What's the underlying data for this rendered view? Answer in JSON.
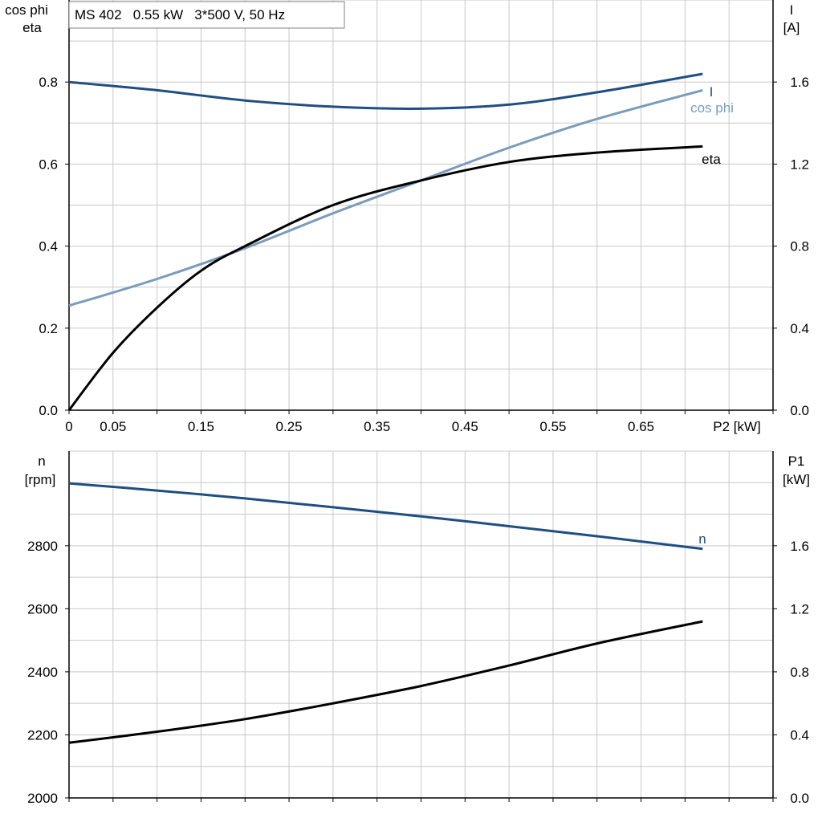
{
  "header": {
    "title": "MS 402   0.55 kW   3*500 V, 50 Hz"
  },
  "colors": {
    "I": "#1f4e82",
    "cosphi": "#7a9cbc",
    "eta": "#000000",
    "n": "#1f4e82",
    "P1": "#000000",
    "grid": "#c8c8c8",
    "axis": "#000000"
  },
  "chart_data": [
    {
      "type": "line",
      "x_axis": {
        "label": "P2 [kW]",
        "range": [
          0,
          0.8
        ],
        "ticks": [
          "0",
          "0.05",
          "0.15",
          "0.25",
          "0.35",
          "0.45",
          "0.55",
          "0.65"
        ]
      },
      "y_left": {
        "label_line1": "cos phi",
        "label_line2": "eta",
        "range": [
          0,
          1.0
        ],
        "ticks": [
          "0.0",
          "0.2",
          "0.4",
          "0.6",
          "0.8"
        ]
      },
      "y_right": {
        "label_line1": "I",
        "label_line2": "[A]",
        "range": [
          0,
          2.0
        ],
        "ticks": [
          "0.0",
          "0.4",
          "0.8",
          "1.2",
          "1.6"
        ]
      },
      "grid": true,
      "series": [
        {
          "name": "I",
          "axis": "right",
          "x": [
            0,
            0.1,
            0.2,
            0.3,
            0.4,
            0.5,
            0.6,
            0.72
          ],
          "y": [
            1.6,
            1.56,
            1.51,
            1.48,
            1.47,
            1.49,
            1.55,
            1.64
          ]
        },
        {
          "name": "cos phi",
          "axis": "left",
          "x": [
            0,
            0.1,
            0.2,
            0.3,
            0.4,
            0.5,
            0.6,
            0.72
          ],
          "y": [
            0.255,
            0.32,
            0.395,
            0.48,
            0.56,
            0.64,
            0.71,
            0.78
          ]
        },
        {
          "name": "eta",
          "axis": "left",
          "x": [
            0,
            0.05,
            0.1,
            0.15,
            0.2,
            0.3,
            0.4,
            0.5,
            0.6,
            0.72
          ],
          "y": [
            0.0,
            0.14,
            0.25,
            0.34,
            0.4,
            0.5,
            0.56,
            0.605,
            0.628,
            0.643
          ]
        }
      ]
    },
    {
      "type": "line",
      "x_axis": {
        "range": [
          0,
          0.8
        ]
      },
      "y_left": {
        "label_line1": "n",
        "label_line2": "[rpm]",
        "range": [
          2000,
          3100
        ],
        "ticks": [
          "2000",
          "2200",
          "2400",
          "2600",
          "2800"
        ]
      },
      "y_right": {
        "label_line1": "P1",
        "label_line2": "[kW]",
        "range": [
          0,
          2.2
        ],
        "ticks": [
          "0.0",
          "0.4",
          "0.8",
          "1.2",
          "1.6"
        ]
      },
      "grid": true,
      "series": [
        {
          "name": "n",
          "axis": "left",
          "x": [
            0,
            0.1,
            0.2,
            0.3,
            0.4,
            0.5,
            0.6,
            0.72
          ],
          "y": [
            2998,
            2975,
            2950,
            2922,
            2893,
            2862,
            2830,
            2790
          ]
        },
        {
          "axis": "right",
          "x": [
            0,
            0.1,
            0.2,
            0.3,
            0.4,
            0.5,
            0.6,
            0.72
          ],
          "y": [
            0.35,
            0.42,
            0.5,
            0.6,
            0.71,
            0.84,
            0.98,
            1.12
          ]
        }
      ]
    }
  ]
}
